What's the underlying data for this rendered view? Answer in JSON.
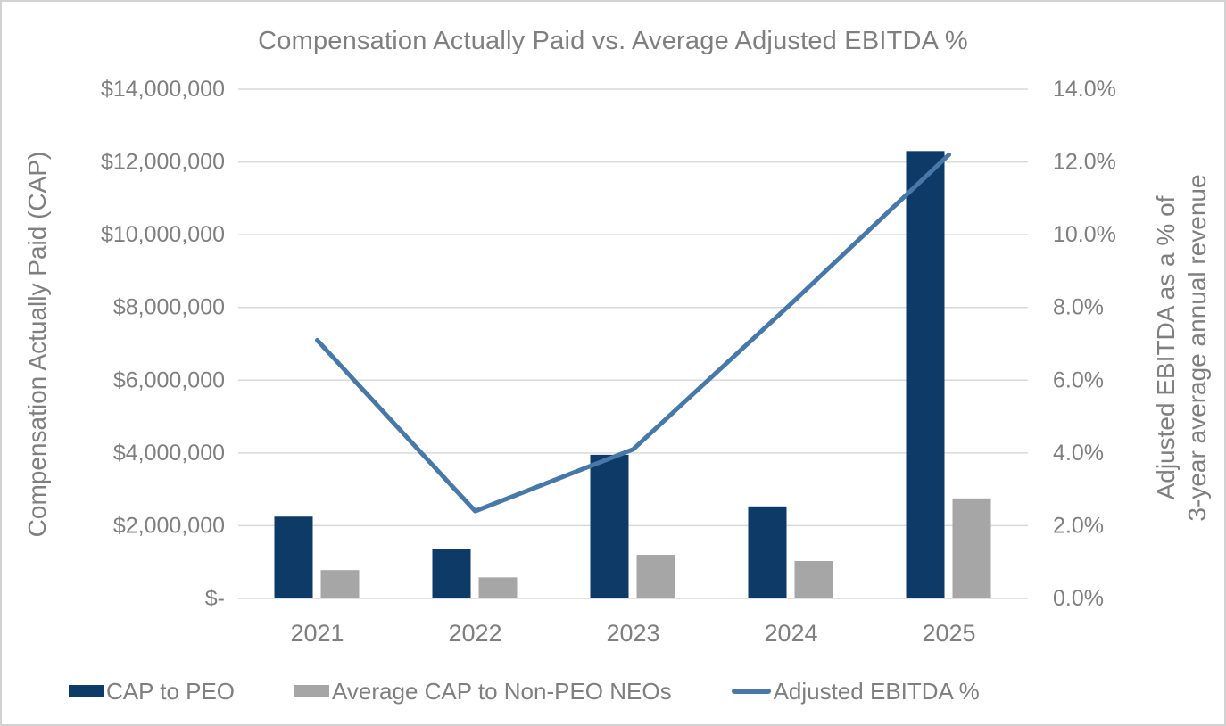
{
  "colors": {
    "background": "#ffffff",
    "frame_border": "#d2d2d2",
    "gridline": "#d9d9d9",
    "text": "#7f7f7f",
    "bar_peo": "#0d3a66",
    "bar_non_peo": "#a6a6a6",
    "ebitda_line": "#4878a8"
  },
  "chart_data": {
    "type": "combo",
    "title": "Compensation Actually Paid vs. Average Adjusted EBITDA %",
    "categories": [
      "2021",
      "2022",
      "2023",
      "2024",
      "2025"
    ],
    "series": [
      {
        "name": "CAP to PEO",
        "type": "bar",
        "axis": "left",
        "color": "#0d3a66",
        "values": [
          2250000,
          1350000,
          3950000,
          2530000,
          12300000
        ]
      },
      {
        "name": "Average CAP to Non-PEO NEOs",
        "type": "bar",
        "axis": "left",
        "color": "#a6a6a6",
        "values": [
          780000,
          580000,
          1200000,
          1030000,
          2750000
        ]
      },
      {
        "name": "Adjusted EBITDA %",
        "type": "line",
        "axis": "right",
        "color": "#4878a8",
        "values": [
          7.1,
          2.4,
          4.1,
          8.1,
          12.2
        ]
      }
    ],
    "left_axis": {
      "title": "Compensation Actually Paid (CAP)",
      "min": 0,
      "max": 14000000,
      "tick_step": 2000000,
      "ticks_top_to_bottom": [
        "$14,000,000",
        "$12,000,000",
        "$10,000,000",
        "$8,000,000",
        "$6,000,000",
        "$4,000,000",
        "$2,000,000",
        "$-"
      ]
    },
    "right_axis": {
      "title_line1": "Adjusted EBITDA as a % of",
      "title_line2": "3-year average annual revenue",
      "min": 0,
      "max": 14,
      "tick_step": 2,
      "ticks_top_to_bottom": [
        "14.0%",
        "12.0%",
        "10.0%",
        "8.0%",
        "6.0%",
        "4.0%",
        "2.0%",
        "0.0%"
      ]
    },
    "grid": true,
    "legend_position": "bottom"
  }
}
